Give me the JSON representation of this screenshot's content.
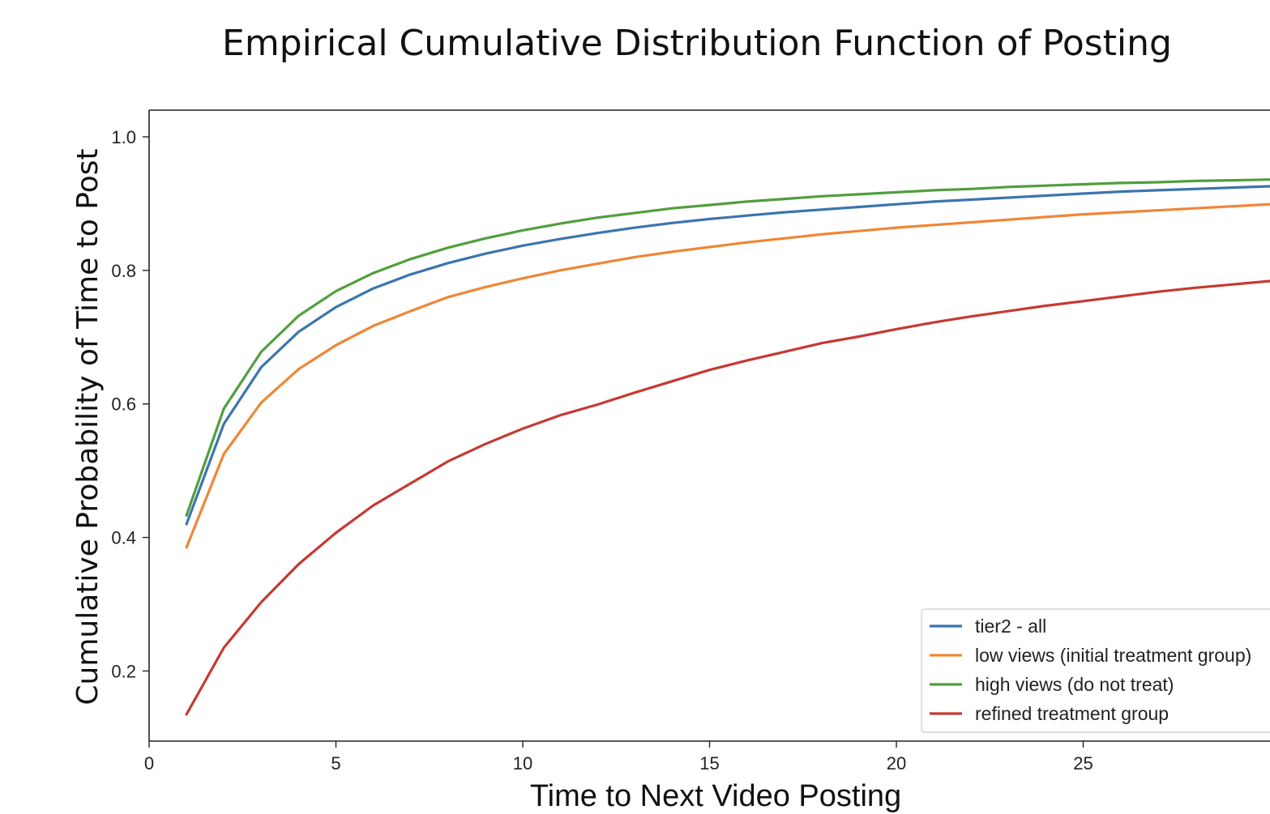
{
  "chart_data": {
    "type": "line",
    "title": "Empirical Cumulative Distribution Function of Posting",
    "xlabel": "Time to Next Video Posting",
    "ylabel": "Cumulative Probability of Time to Post",
    "xlim": [
      0,
      30
    ],
    "ylim": [
      0.095,
      1.04
    ],
    "xticks": [
      "0",
      "5",
      "10",
      "15",
      "20",
      "25"
    ],
    "yticks": [
      "0.2",
      "0.4",
      "0.6",
      "0.8",
      "1.0"
    ],
    "grid": false,
    "legend_position": "lower-right",
    "x": [
      1,
      2,
      3,
      4,
      5,
      6,
      7,
      8,
      9,
      10,
      11,
      12,
      13,
      14,
      15,
      16,
      17,
      18,
      19,
      20,
      21,
      22,
      23,
      24,
      25,
      26,
      27,
      28,
      29,
      30
    ],
    "series": [
      {
        "name": "tier2 - all",
        "color": "#3b75af",
        "values": [
          0.42,
          0.57,
          0.655,
          0.708,
          0.745,
          0.773,
          0.794,
          0.811,
          0.825,
          0.837,
          0.847,
          0.856,
          0.864,
          0.871,
          0.877,
          0.882,
          0.887,
          0.891,
          0.895,
          0.899,
          0.903,
          0.906,
          0.909,
          0.912,
          0.915,
          0.918,
          0.92,
          0.922,
          0.924,
          0.926
        ]
      },
      {
        "name": "low views (initial treatment group)",
        "color": "#ef8636",
        "values": [
          0.385,
          0.525,
          0.602,
          0.652,
          0.688,
          0.717,
          0.739,
          0.76,
          0.775,
          0.788,
          0.8,
          0.81,
          0.82,
          0.828,
          0.835,
          0.842,
          0.848,
          0.854,
          0.859,
          0.864,
          0.868,
          0.872,
          0.876,
          0.88,
          0.884,
          0.887,
          0.89,
          0.893,
          0.896,
          0.899
        ]
      },
      {
        "name": "high views (do not treat)",
        "color": "#519e3e",
        "values": [
          0.433,
          0.593,
          0.678,
          0.732,
          0.769,
          0.796,
          0.817,
          0.834,
          0.848,
          0.86,
          0.87,
          0.879,
          0.886,
          0.893,
          0.898,
          0.903,
          0.907,
          0.911,
          0.914,
          0.917,
          0.92,
          0.922,
          0.925,
          0.927,
          0.929,
          0.931,
          0.932,
          0.934,
          0.935,
          0.936
        ]
      },
      {
        "name": "refined treatment group",
        "color": "#c53a32",
        "values": [
          0.135,
          0.235,
          0.303,
          0.36,
          0.407,
          0.448,
          0.481,
          0.514,
          0.54,
          0.563,
          0.583,
          0.599,
          0.617,
          0.634,
          0.651,
          0.665,
          0.678,
          0.691,
          0.701,
          0.712,
          0.722,
          0.731,
          0.739,
          0.747,
          0.754,
          0.761,
          0.768,
          0.774,
          0.779,
          0.784
        ]
      }
    ]
  }
}
